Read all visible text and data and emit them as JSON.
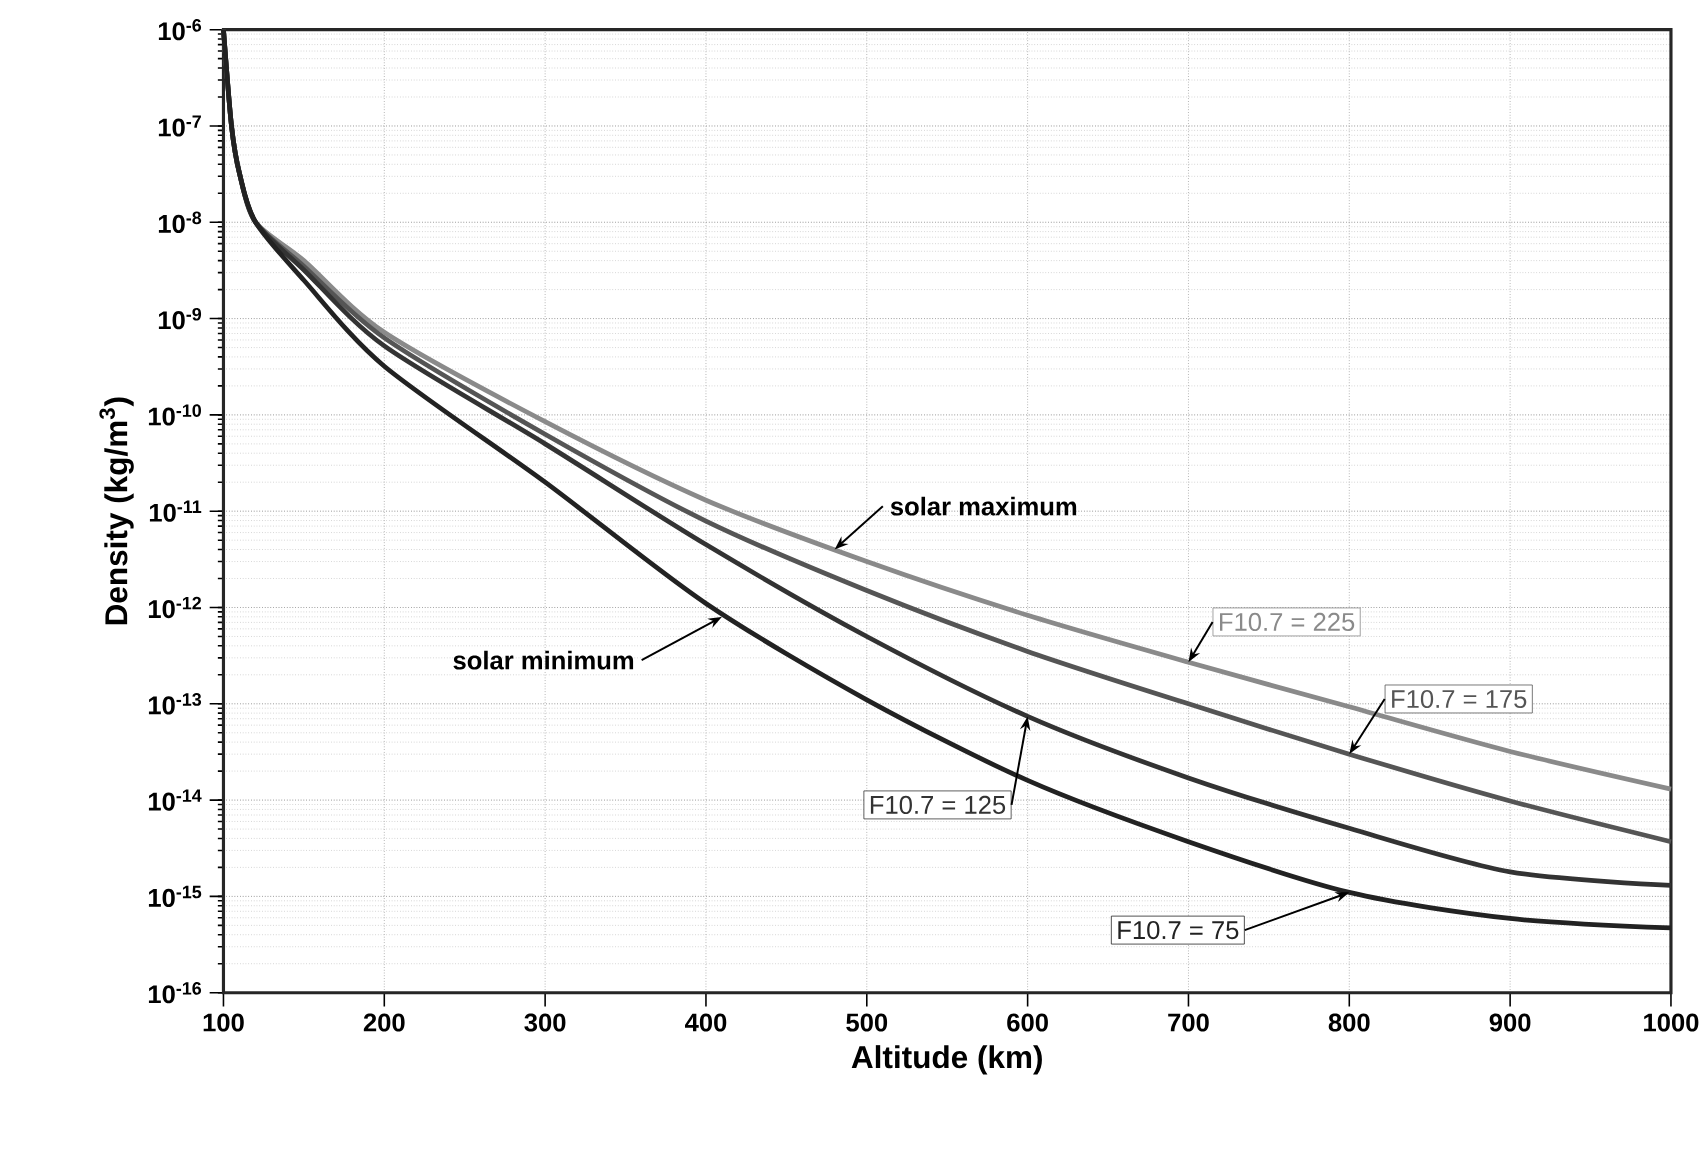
{
  "chart_data": {
    "type": "line",
    "xlabel": "Altitude (km)",
    "ylabel": "Density (kg/m$^{3}$)",
    "x": [
      100,
      105,
      110,
      120,
      150,
      200,
      300,
      400,
      500,
      600,
      700,
      800,
      900,
      1000
    ],
    "series": [
      {
        "name": "F10.7 = 225",
        "color": "#8a8a8a",
        "values": [
          1e-06,
          1e-07,
          3.2e-08,
          1e-08,
          4e-09,
          7.2e-10,
          8.5e-11,
          1.3e-11,
          3e-12,
          8.3e-13,
          2.7e-13,
          9.3e-14,
          3.2e-14,
          1.3e-14
        ]
      },
      {
        "name": "F10.7 = 175",
        "color": "#555555",
        "values": [
          1e-06,
          1e-07,
          3.2e-08,
          1e-08,
          3.5e-09,
          6.3e-10,
          6.3e-11,
          7.9e-12,
          1.5e-12,
          3.5e-13,
          1e-13,
          3e-14,
          9.8e-15,
          3.7e-15
        ]
      },
      {
        "name": "F10.7 = 125",
        "color": "#333333",
        "values": [
          1e-06,
          1e-07,
          3.2e-08,
          1e-08,
          3.2e-09,
          5.2e-10,
          5e-11,
          4.5e-12,
          5e-13,
          7.4e-14,
          1.7e-14,
          5.1e-15,
          1.8e-15,
          1.3e-15
        ]
      },
      {
        "name": "F10.7 = 75",
        "color": "#222222",
        "values": [
          1e-06,
          1e-07,
          3.2e-08,
          1e-08,
          2.5e-09,
          3.2e-10,
          2e-11,
          1.1e-12,
          1.1e-13,
          1.6e-14,
          3.7e-15,
          1.1e-15,
          5.9e-16,
          4.7e-16
        ]
      }
    ],
    "xlim": [
      100,
      1000
    ],
    "xticks": [
      100,
      200,
      300,
      400,
      500,
      600,
      700,
      800,
      900,
      1000
    ],
    "ylim": [
      1e-16,
      1e-06
    ],
    "yticks": [
      {
        "value": 1e-16,
        "label": "10$^{-16}$"
      },
      {
        "value": 1e-15,
        "label": "10$^{-15}$"
      },
      {
        "value": 1e-14,
        "label": "10$^{-14}$"
      },
      {
        "value": 1e-13,
        "label": "10$^{-13}$"
      },
      {
        "value": 1e-12,
        "label": "10$^{-12}$"
      },
      {
        "value": 1e-11,
        "label": "10$^{-11}$"
      },
      {
        "value": 1e-10,
        "label": "10$^{-10}$"
      },
      {
        "value": 1e-09,
        "label": "10$^{-9}$"
      },
      {
        "value": 1e-08,
        "label": "10$^{-8}$"
      },
      {
        "value": 1e-07,
        "label": "10$^{-7}$"
      },
      {
        "value": 1e-06,
        "label": "10$^{-6}$"
      }
    ],
    "log": "y",
    "grid": true,
    "marker": "none",
    "line_style": "solid",
    "annotations": [
      {
        "text": "solar maximum",
        "x": 480,
        "y": 4e-12
      },
      {
        "text": "solar minimum",
        "x": 410,
        "y": 8e-13
      }
    ]
  }
}
